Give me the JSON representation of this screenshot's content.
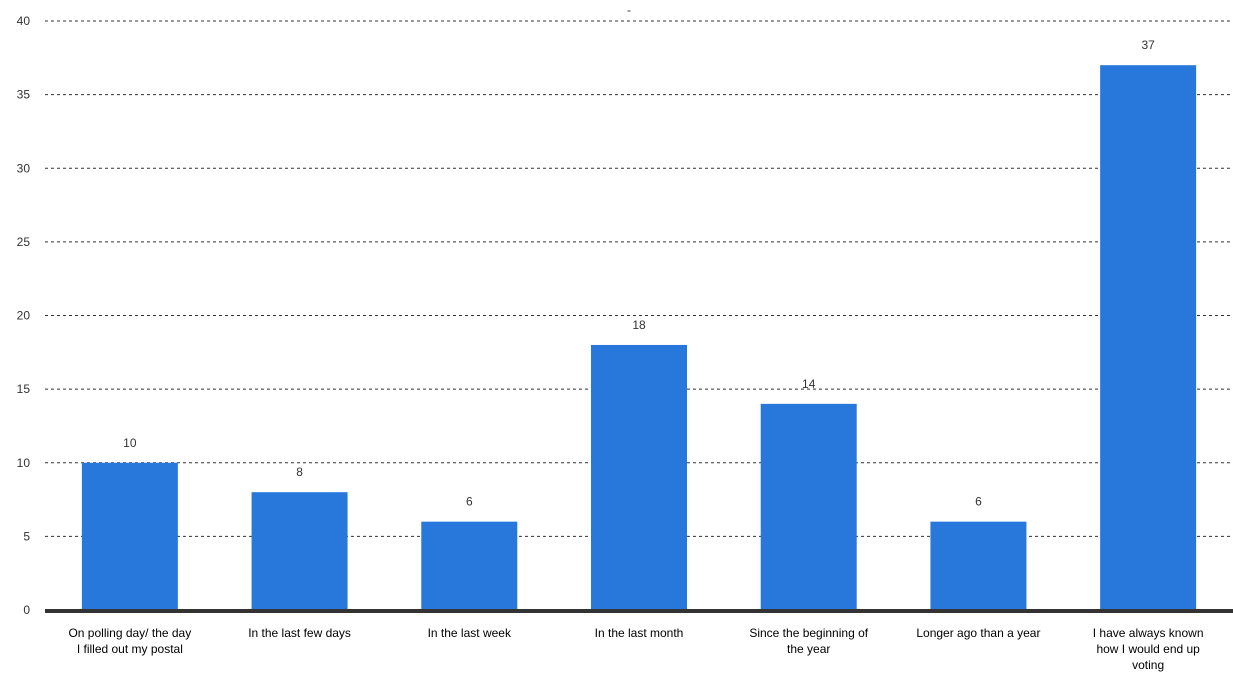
{
  "chart_data": {
    "type": "bar",
    "title": "-",
    "categories": [
      "On polling day/ the day I filled out my postal",
      "In the last few days",
      "In the last week",
      "In the last month",
      "Since the beginning of the year",
      "Longer ago than a year",
      "I have always known how I would end up voting"
    ],
    "category_lines": [
      [
        "On polling day/ the day",
        "I filled out my postal"
      ],
      [
        "In the last few days"
      ],
      [
        "In the last week"
      ],
      [
        "In the last month"
      ],
      [
        "Since the beginning of",
        "the year"
      ],
      [
        "Longer ago than a year"
      ],
      [
        "I have always known",
        "how I would end up",
        "voting"
      ]
    ],
    "values": [
      10,
      8,
      6,
      18,
      14,
      6,
      37
    ],
    "data_labels": [
      "10",
      "8",
      "6",
      "18",
      "14",
      "6",
      "37"
    ],
    "ylim": [
      0,
      40
    ],
    "yticks": [
      0,
      5,
      10,
      15,
      20,
      25,
      30,
      35,
      40
    ],
    "grid": true,
    "legend": "none",
    "colors": {
      "bar": "#2878dc",
      "grid": "#333333",
      "baseline": "#333333"
    }
  }
}
